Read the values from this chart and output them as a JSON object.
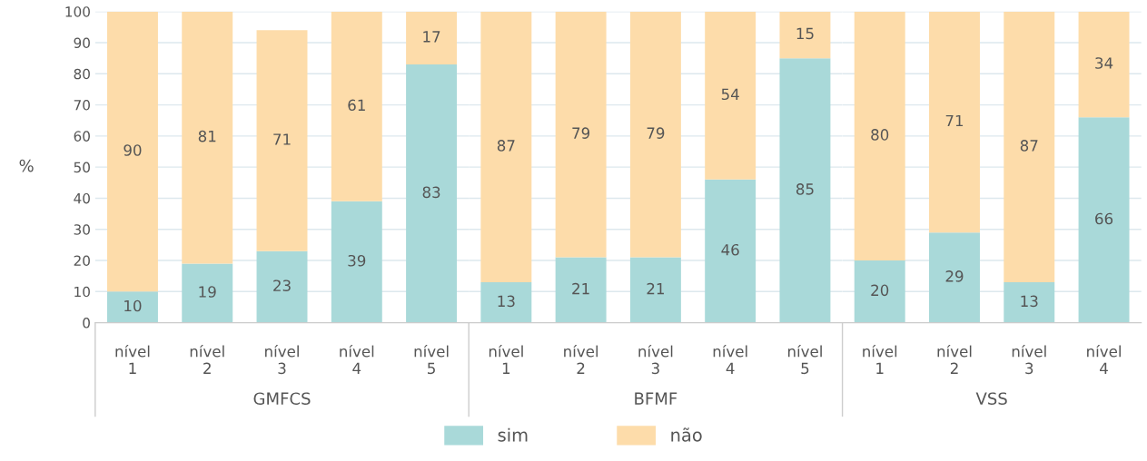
{
  "chart_data": [
    {
      "type": "bar",
      "stacked": true,
      "xlabel": "GMFCS",
      "ylabel": "%",
      "categories": [
        "nível\n1",
        "nível\n2",
        "nível\n3",
        "nível\n4",
        "nível\n5"
      ],
      "series": [
        {
          "name": "sim",
          "color": "#a9d9d9",
          "values": [
            10,
            19,
            23,
            39,
            83
          ]
        },
        {
          "name": "não",
          "color": "#fddcaa",
          "values": [
            90,
            81,
            71,
            61,
            17
          ]
        }
      ],
      "ylim": [
        0,
        100
      ],
      "yticks": [
        0,
        10,
        20,
        30,
        40,
        50,
        60,
        70,
        80,
        90,
        100
      ],
      "grid": "y",
      "data_labels": true,
      "legend": "bottom"
    },
    {
      "type": "bar",
      "stacked": true,
      "xlabel": "BFMF",
      "categories": [
        "nível\n1",
        "nível\n2",
        "nível\n3",
        "nível\n4",
        "nível\n5"
      ],
      "series": [
        {
          "color": "#a9d9d9",
          "values": [
            13,
            21,
            21,
            46,
            85
          ]
        },
        {
          "color": "#fddcaa",
          "values": [
            87,
            79,
            79,
            54,
            15
          ]
        }
      ],
      "ylim": [
        0,
        100
      ],
      "yticks": [
        0,
        10,
        20,
        30,
        40,
        50,
        60,
        70,
        80,
        90,
        100
      ],
      "grid": "y",
      "data_labels": true,
      "tick_labels": "x"
    },
    {
      "type": "bar",
      "stacked": true,
      "xlabel": "VSS",
      "categories": [
        "nível\n1",
        "nível\n2",
        "nível\n3",
        "nível\n4"
      ],
      "series": [
        {
          "color": "#a9d9d9",
          "values": [
            20,
            29,
            13,
            66
          ]
        },
        {
          "color": "#fddcaa",
          "values": [
            80,
            71,
            87,
            34
          ]
        }
      ],
      "ylim": [
        0,
        100
      ],
      "yticks": [
        0,
        10,
        20,
        30,
        40,
        50,
        60,
        70,
        80,
        90,
        100
      ],
      "grid": "y",
      "data_labels": true,
      "tick_labels": "x"
    }
  ]
}
